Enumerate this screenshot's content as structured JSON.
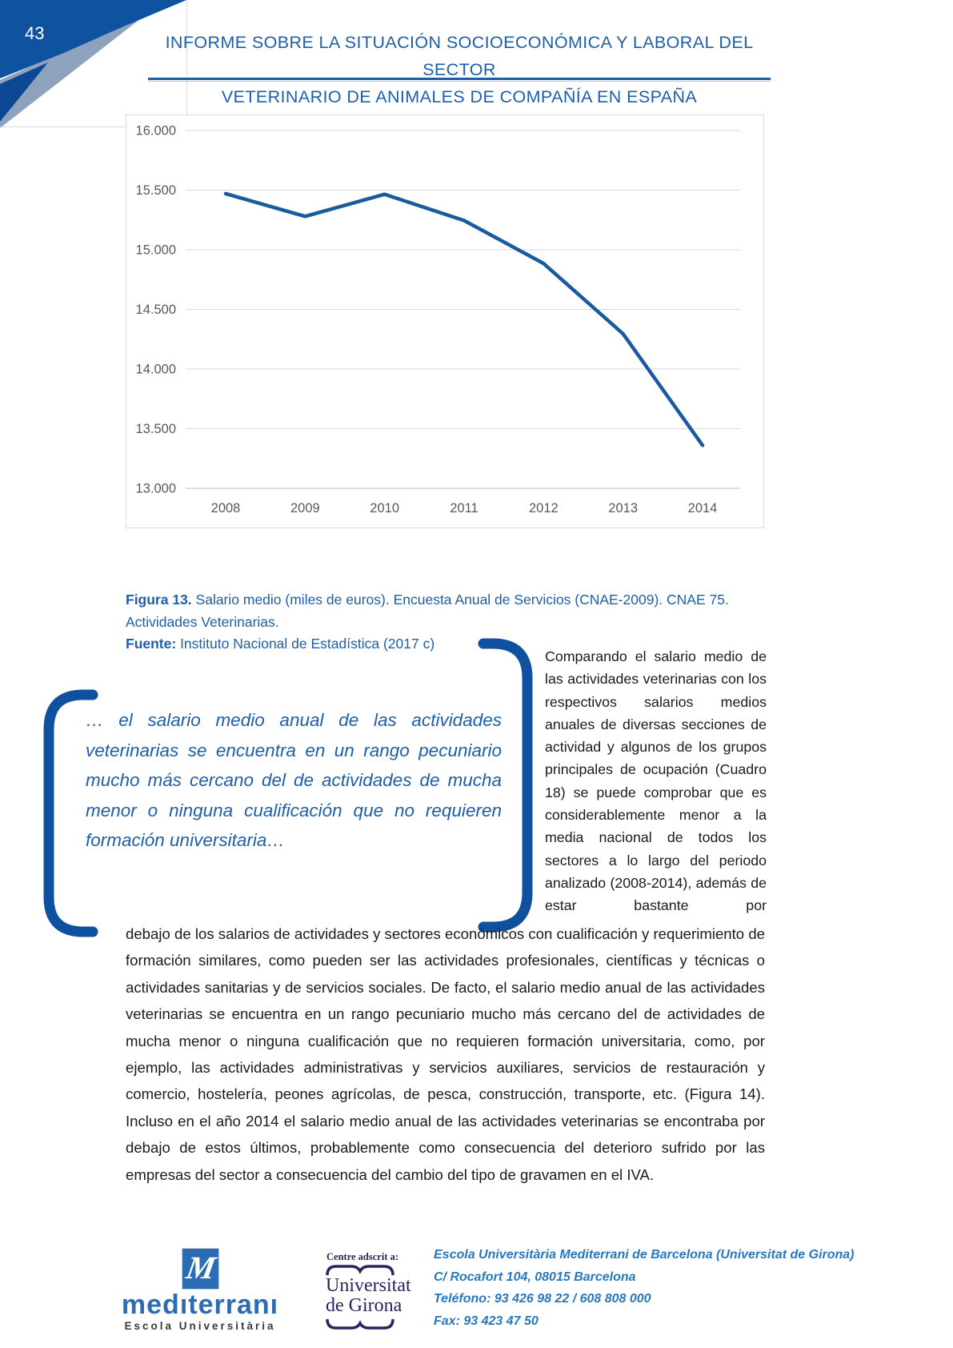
{
  "page": {
    "number": "43"
  },
  "header": {
    "title_line1": "INFORME SOBRE LA SITUACIÓN SOCIOECONÓMICA Y LABORAL DEL SECTOR",
    "title_line2": "VETERINARIO DE ANIMALES DE COMPAÑÍA EN ESPAÑA"
  },
  "chart_data": {
    "type": "line",
    "x": [
      2008,
      2009,
      2010,
      2011,
      2012,
      2013,
      2014
    ],
    "values": [
      15470,
      15280,
      15465,
      15245,
      14885,
      14295,
      13360
    ],
    "title": "",
    "xlabel": "",
    "ylabel": "",
    "ylim": [
      13000,
      16000
    ],
    "grid": true,
    "legend": "none",
    "line_color": "#1a5a9e",
    "yticks": [
      {
        "value": 16000,
        "label": "16.000"
      },
      {
        "value": 15500,
        "label": "15.500"
      },
      {
        "value": 15000,
        "label": "15.000"
      },
      {
        "value": 14500,
        "label": "14.500"
      },
      {
        "value": 14000,
        "label": "14.000"
      },
      {
        "value": 13500,
        "label": "13.500"
      },
      {
        "value": 13000,
        "label": "13.000"
      }
    ]
  },
  "figure": {
    "label": "Figura 13.",
    "caption": " Salario medio (miles de euros). Encuesta Anual de Servicios (CNAE-2009). CNAE 75. Actividades Veterinarias.",
    "source_label": "Fuente:",
    "source": " Instituto Nacional de Estadística (2017 c)"
  },
  "pull_quote": {
    "text": "…  el salario medio anual de las actividades veterinarias se encuentra en un rango pecuniario mucho más cercano del de actividades de mucha menor o ninguna cualificación que no requieren formación universitaria…"
  },
  "columns": {
    "right_column": "Comparando el salario medio de las actividades veterinarias con los respectivos salarios medios anuales de diversas secciones de actividad y algunos de los grupos principales de ocupación (Cuadro 18) se puede comprobar que es considerablemente menor a la media nacional de todos los sectores a lo largo del periodo analizado (2008-2014), además de estar bastante por"
  },
  "body": {
    "paragraph": "debajo de los salarios de actividades y sectores económicos con cualificación y requerimiento de formación similares, como pueden ser las actividades profesionales, científicas y técnicas o actividades sanitarias y de servicios sociales. De facto, el salario medio anual de las actividades veterinarias se encuentra en un rango pecuniario mucho más cercano del de actividades de mucha menor o ninguna cualificación que no requieren formación universitaria, como, por ejemplo, las actividades administrativas y servicios auxiliares, servicios de restauración y comercio, hostelería, peones agrícolas, de pesca, construcción, transporte, etc. (Figura 14). Incluso en el año 2014 el salario medio anual de las actividades veterinarias se encontraba por debajo de estos últimos, probablemente como consecuencia del deterioro sufrido por las empresas del sector a consecuencia del cambio del tipo de gravamen en el IVA."
  },
  "footer": {
    "mediterrani": {
      "logo_letter": "M",
      "wordmark": "medıterranı",
      "subtitle": "Escola Universitària"
    },
    "udg": {
      "adscrit": "Centre adscrit a:",
      "line1": "Universitat",
      "line2": "de Girona"
    },
    "contact": [
      "Escola Universitària Mediterrani de Barcelona (Universitat de Girona)",
      "C/ Rocafort 104, 08015 Barcelona",
      "Teléfono: 93 426 98 22 / 608 808 000",
      "Fax: 93 423 47 50"
    ]
  },
  "colors": {
    "title_blue": "#1e5fa9",
    "chart_line_blue": "#1a5a9e",
    "corner_navy": "#0e52a0",
    "corner_gray": "#8fa2bd",
    "bracket_blue": "#10519f",
    "footer_contact_blue": "#2878be",
    "udg_navy": "#26265e",
    "mediterrani_blue": "#2c6cb4",
    "gridline_gray": "#d9d9d9",
    "axis_text_gray": "#595959"
  }
}
